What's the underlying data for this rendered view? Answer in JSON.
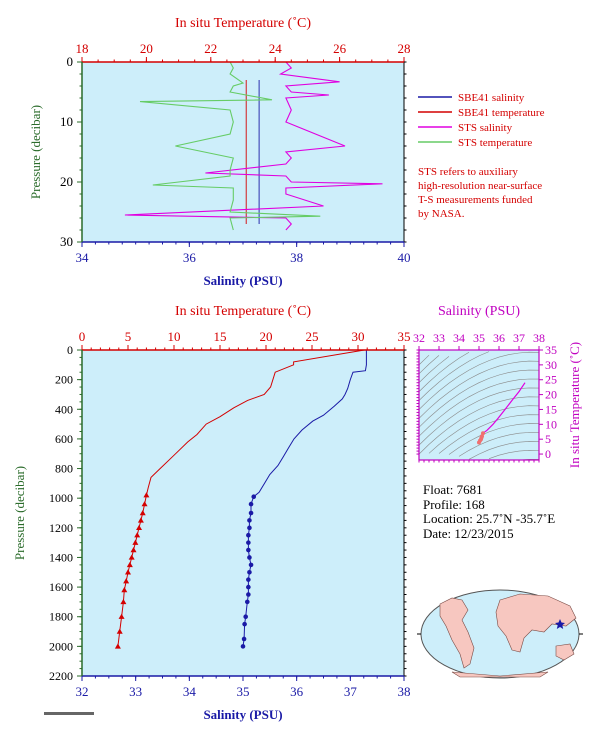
{
  "top_panel": {
    "top_axis_title": "In situ Temperature (˚C)",
    "top_ticks": [
      "18",
      "20",
      "22",
      "24",
      "26",
      "28"
    ],
    "left_axis_title": "Pressure (decibar)",
    "left_ticks": [
      "0",
      "10",
      "20",
      "30"
    ],
    "bottom_axis_title": "Salinity (PSU)",
    "bottom_ticks": [
      "34",
      "36",
      "38",
      "40"
    ]
  },
  "legend": {
    "items": [
      {
        "label": "SBE41 salinity",
        "color": "#1a1aa6"
      },
      {
        "label": "SBE41 temperature",
        "color": "#d40000"
      },
      {
        "label": "STS salinity",
        "color": "#e000e0"
      },
      {
        "label": "STS temperature",
        "color": "#66cc66"
      }
    ],
    "note_lines": [
      "STS refers to auxiliary",
      "high-resolution near-surface",
      "T-S measurements funded",
      "by NASA."
    ]
  },
  "main_panel": {
    "top_axis_title": "In situ Temperature (˚C)",
    "top_ticks": [
      "0",
      "5",
      "10",
      "15",
      "20",
      "25",
      "30",
      "35"
    ],
    "left_axis_title": "Pressure (decibar)",
    "left_ticks": [
      "0",
      "200",
      "400",
      "600",
      "800",
      "1000",
      "1200",
      "1400",
      "1600",
      "1800",
      "2000",
      "2200"
    ],
    "bottom_axis_title": "Salinity (PSU)",
    "bottom_ticks": [
      "32",
      "33",
      "34",
      "35",
      "36",
      "37",
      "38"
    ]
  },
  "ts_panel": {
    "top_axis_title": "Salinity (PSU)",
    "top_ticks": [
      "32",
      "33",
      "34",
      "35",
      "36",
      "37",
      "38"
    ],
    "right_axis_title": "In situ Temperature (˚C)",
    "right_ticks": [
      "0",
      "5",
      "10",
      "15",
      "20",
      "25",
      "30",
      "35"
    ]
  },
  "info": {
    "float": "Float:  7681",
    "profile": "Profile:  168",
    "location": "Location:  25.7˚N  -35.7˚E",
    "date": "Date:  12/23/2015"
  },
  "colors": {
    "plot_bg": "#cdeefa",
    "salinity": "#1a1aa6",
    "temperature": "#d40000",
    "sts_salinity": "#e000e0",
    "sts_temperature": "#66cc66"
  },
  "chart_data": [
    {
      "type": "line",
      "panel": "near-surface",
      "xlabel": "Salinity (PSU)",
      "x2label": "In situ Temperature (˚C)",
      "ylabel": "Pressure (decibar)",
      "xlim": [
        34,
        40
      ],
      "x2lim": [
        18,
        28
      ],
      "ylim": [
        30,
        0
      ],
      "series": [
        {
          "name": "SBE41 salinity",
          "x": [
            37.3,
            37.3
          ],
          "y": [
            3,
            27
          ]
        },
        {
          "name": "SBE41 temperature",
          "x": [
            23.1,
            23.1
          ],
          "y": [
            3,
            27
          ]
        },
        {
          "name": "STS salinity",
          "x": [
            37.8,
            37.9,
            37.7,
            38.8,
            37.8,
            37.9,
            38.6,
            37.8,
            37.9,
            37.8,
            38.9,
            37.8,
            37.9,
            37.8,
            36.3,
            37.8,
            37.9,
            39.6,
            37.8,
            37.8,
            38.5,
            34.8,
            37.8,
            37.9,
            37.8
          ],
          "y": [
            0,
            1,
            2,
            3.3,
            4,
            5,
            5.5,
            6,
            8,
            10,
            14,
            15,
            16,
            17,
            18.5,
            19,
            20,
            20.3,
            21,
            22,
            24,
            25.5,
            26,
            27,
            28
          ]
        },
        {
          "name": "STS temperature",
          "x": [
            22.6,
            22.7,
            22.6,
            23.0,
            22.7,
            22.6,
            23.9,
            19.8,
            22.6,
            22.7,
            22.6,
            20.9,
            22.7,
            22.6,
            22.6,
            22.6,
            20.2,
            22.7,
            22.7,
            22.6,
            25.4,
            22.6,
            22.7
          ],
          "y": [
            0,
            1,
            2,
            3.5,
            4,
            5,
            6.3,
            6.6,
            8,
            10,
            12,
            14,
            16,
            18,
            18.5,
            19,
            20.5,
            21,
            23,
            25,
            25.7,
            26,
            28
          ]
        }
      ]
    },
    {
      "type": "line",
      "panel": "full-profile",
      "xlabel": "Salinity (PSU)",
      "x2label": "In situ Temperature (˚C)",
      "ylabel": "Pressure (decibar)",
      "xlim": [
        32,
        38
      ],
      "x2lim": [
        0,
        35
      ],
      "ylim": [
        2200,
        0
      ],
      "series": [
        {
          "name": "Salinity",
          "x": [
            37.3,
            37.3,
            37.28,
            37.05,
            37.0,
            36.95,
            36.9,
            36.85,
            36.7,
            36.5,
            36.3,
            36.1,
            35.95,
            35.85,
            35.75,
            35.65,
            35.5,
            35.4,
            35.3,
            35.2,
            35.15,
            35.15,
            35.12,
            35.12,
            35.1,
            35.1,
            35.1,
            35.12,
            35.15,
            35.12,
            35.1,
            35.1,
            35.1,
            35.08,
            35.05,
            35.03,
            35.02,
            35.0
          ],
          "y": [
            0,
            100,
            140,
            150,
            200,
            260,
            300,
            330,
            380,
            440,
            480,
            540,
            600,
            660,
            720,
            780,
            840,
            900,
            960,
            990,
            1040,
            1100,
            1150,
            1200,
            1250,
            1300,
            1350,
            1400,
            1450,
            1500,
            1550,
            1600,
            1650,
            1700,
            1800,
            1850,
            1950,
            2000
          ]
        },
        {
          "name": "Temperature",
          "x": [
            30.7,
            23.0,
            23.0,
            21.0,
            20.5,
            19.8,
            18.0,
            16.5,
            15.0,
            13.5,
            12.5,
            11.5,
            10.5,
            9.5,
            8.5,
            7.5,
            7.2,
            7.0,
            6.8,
            6.6,
            6.4,
            6.2,
            6.0,
            5.8,
            5.6,
            5.4,
            5.2,
            5.0,
            4.8,
            4.6,
            4.5,
            4.3,
            4.1,
            3.9
          ],
          "y": [
            0,
            80,
            100,
            150,
            250,
            300,
            340,
            390,
            450,
            500,
            570,
            620,
            680,
            740,
            800,
            860,
            930,
            980,
            1040,
            1100,
            1150,
            1200,
            1250,
            1300,
            1350,
            1400,
            1450,
            1500,
            1560,
            1620,
            1700,
            1800,
            1900,
            2000
          ]
        }
      ]
    },
    {
      "type": "line",
      "panel": "T-S diagram",
      "xlabel": "Salinity (PSU)",
      "ylabel": "In situ Temperature (˚C)",
      "xlim": [
        32,
        38
      ],
      "ylim": [
        -2,
        35
      ],
      "series": [
        {
          "name": "T-S",
          "x": [
            37.3,
            37.0,
            36.7,
            36.3,
            35.95,
            35.7,
            35.4,
            35.2,
            35.15,
            35.12,
            35.1,
            35.05,
            35.0
          ],
          "y": [
            24.0,
            21.0,
            18.5,
            15.0,
            12.0,
            10.0,
            8.0,
            7.0,
            6.0,
            5.5,
            5.0,
            4.5,
            3.9
          ]
        }
      ]
    }
  ]
}
